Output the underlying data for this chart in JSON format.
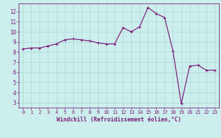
{
  "x_values": [
    0,
    1,
    2,
    3,
    4,
    5,
    6,
    7,
    8,
    9,
    10,
    11,
    12,
    13,
    14,
    15,
    16,
    17,
    18,
    19,
    20,
    21,
    22,
    23
  ],
  "y_values": [
    8.3,
    8.4,
    8.4,
    8.6,
    8.8,
    9.2,
    9.3,
    9.2,
    9.1,
    8.9,
    8.8,
    8.8,
    10.4,
    10.0,
    10.5,
    12.4,
    11.8,
    11.4,
    8.1,
    2.9,
    6.6,
    6.7,
    6.2,
    6.2
  ],
  "line_color": "#7B1E7A",
  "marker": "+",
  "bg_color": "#cceeed",
  "grid_color": "#aad8d6",
  "xlabel": "Windchill (Refroidissement éolien,°C)",
  "xlabel_color": "#7B1E7A",
  "tick_color": "#7B1E7A",
  "spine_color": "#7B1E7A",
  "ylim": [
    2.5,
    12.8
  ],
  "xlim": [
    -0.5,
    23.5
  ],
  "yticks": [
    3,
    4,
    5,
    6,
    7,
    8,
    9,
    10,
    11,
    12
  ],
  "xticks": [
    0,
    1,
    2,
    3,
    4,
    5,
    6,
    7,
    8,
    9,
    10,
    11,
    12,
    13,
    14,
    15,
    16,
    17,
    18,
    19,
    20,
    21,
    22,
    23
  ],
  "marker_size": 3,
  "line_width": 0.9
}
